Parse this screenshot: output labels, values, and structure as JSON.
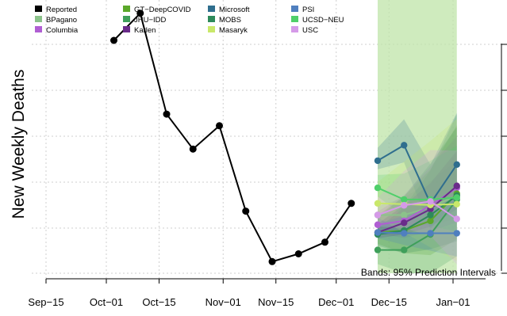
{
  "chart_data": {
    "type": "line",
    "ylabel": "New Weekly Deaths",
    "xlabel": "",
    "note": "Bands: 95% Prediction Intervals",
    "x_ticks": [
      "Sep−15",
      "Oct−01",
      "Oct−15",
      "Nov−01",
      "Nov−15",
      "Dec−01",
      "Dec−15",
      "Jan−01"
    ],
    "y_tick_labels_visible": false,
    "grid": true,
    "legend_position": "top",
    "reported": {
      "name": "Reported",
      "color": "#000000",
      "x": [
        "2020-10-03",
        "2020-10-10",
        "2020-10-17",
        "2020-10-24",
        "2020-10-31",
        "2020-11-07",
        "2020-11-14",
        "2020-11-21",
        "2020-11-28",
        "2020-12-05"
      ],
      "y": [
        6.0,
        6.7,
        4.1,
        3.2,
        3.8,
        1.6,
        0.3,
        0.5,
        0.8,
        1.8
      ]
    },
    "forecast_x": [
      "2020-12-12",
      "2020-12-19",
      "2020-12-26",
      "2021-01-02"
    ],
    "forecast_band_x": [
      "2020-12-12",
      "2021-01-02"
    ],
    "forecast_band_color": "#bfe4a8",
    "series": [
      {
        "name": "BPagano",
        "color": "#8bc38a",
        "values": [
          1.5,
          1.5,
          1.7,
          2.0
        ]
      },
      {
        "name": "Columbia",
        "color": "#b05ed3",
        "values": [
          1.25,
          1.35,
          1.75,
          2.2
        ]
      },
      {
        "name": "GT−DeepCOVID",
        "color": "#5ba82a",
        "values": [
          1.05,
          1.1,
          1.35,
          2.05
        ]
      },
      {
        "name": "JHU−IDD",
        "color": "#3f9f5a",
        "values": [
          0.6,
          0.6,
          1.0,
          1.9
        ]
      },
      {
        "name": "Karlen",
        "color": "#6a2b8a",
        "values": [
          1.05,
          1.3,
          1.65,
          2.25
        ]
      },
      {
        "name": "Microsoft",
        "color": "#2f6e8e",
        "values": [
          2.9,
          3.3,
          1.8,
          2.8
        ]
      },
      {
        "name": "MOBS",
        "color": "#2d8a5a",
        "values": [
          1.0,
          1.1,
          1.5,
          2.0
        ]
      },
      {
        "name": "Masaryk",
        "color": "#c9e86a",
        "values": [
          1.8,
          1.78,
          1.76,
          1.78
        ]
      },
      {
        "name": "PSI",
        "color": "#4f7fbf",
        "values": [
          1.05,
          1.03,
          1.03,
          1.03
        ]
      },
      {
        "name": "UCSD−NEU",
        "color": "#4fcf6a",
        "values": [
          2.2,
          1.9,
          1.9,
          1.95
        ]
      },
      {
        "name": "USC",
        "color": "#d59ae8",
        "values": [
          1.5,
          1.75,
          1.85,
          1.4
        ]
      }
    ],
    "ylim": [
      0,
      7
    ],
    "legend": [
      {
        "label": "Reported",
        "color": "#000000"
      },
      {
        "label": "BPagano",
        "color": "#8bc38a"
      },
      {
        "label": "Columbia",
        "color": "#b05ed3"
      },
      {
        "label": "GT−DeepCOVID",
        "color": "#5ba82a"
      },
      {
        "label": "JHU−IDD",
        "color": "#3f9f5a"
      },
      {
        "label": "Karlen",
        "color": "#6a2b8a"
      },
      {
        "label": "Microsoft",
        "color": "#2f6e8e"
      },
      {
        "label": "MOBS",
        "color": "#2d8a5a"
      },
      {
        "label": "Masaryk",
        "color": "#c9e86a"
      },
      {
        "label": "PSI",
        "color": "#4f7fbf"
      },
      {
        "label": "UCSD−NEU",
        "color": "#4fcf6a"
      },
      {
        "label": "USC",
        "color": "#d59ae8"
      }
    ]
  }
}
